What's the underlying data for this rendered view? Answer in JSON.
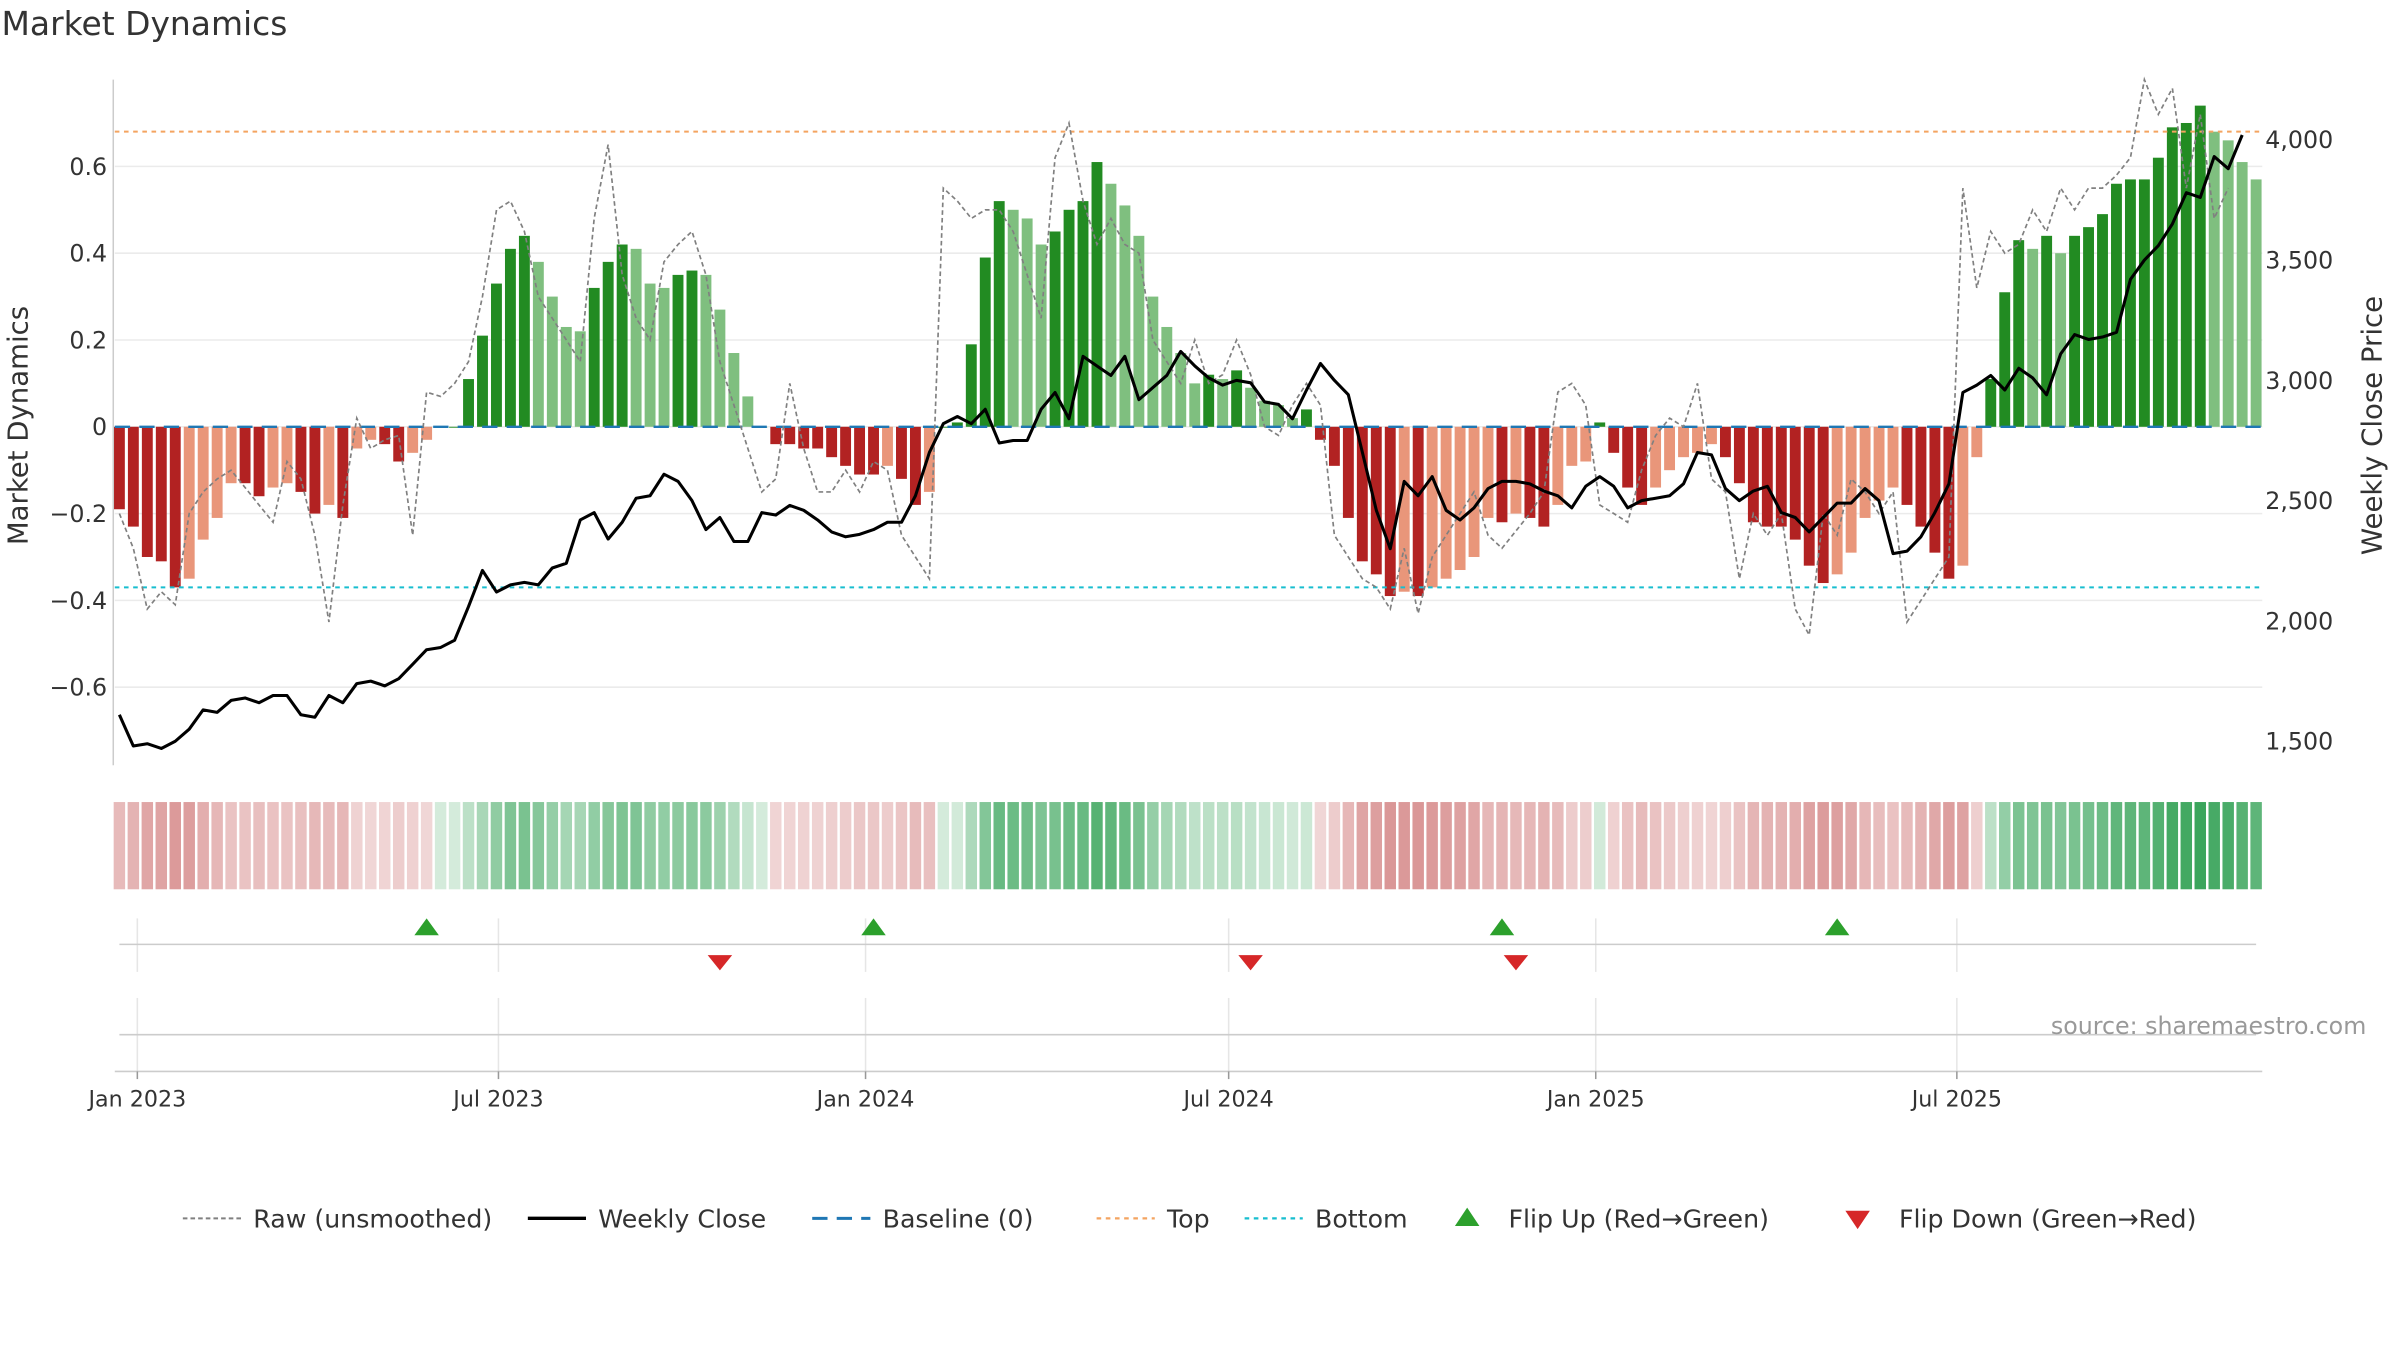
{
  "page": {
    "title": "Market Dynamics",
    "source": "source: sharemaestro.com"
  },
  "colors": {
    "strong_green": "#228B22",
    "light_green": "#7FBF7F",
    "strong_red": "#B22222",
    "light_red": "#E9967A",
    "raw_line": "#808080",
    "close_line": "#000000",
    "baseline": "#1F77B4",
    "top_line": "#F4A460",
    "bottom_line": "#17BECF",
    "flip_up": "#2CA02C",
    "flip_down": "#D62728",
    "source_text": "#999999"
  },
  "chart_data": {
    "type": "bar",
    "title": "Market Dynamics",
    "x_start_date": "2022-12-23",
    "ylabel_left": "Market Dynamics",
    "ylabel_right": "Weekly Close Price",
    "ylim_left": [
      -0.78,
      0.8
    ],
    "ylim_right": [
      1400,
      4250
    ],
    "yticks_left": [
      {
        "value": -0.6,
        "label": "−0.6"
      },
      {
        "value": -0.4,
        "label": "−0.4"
      },
      {
        "value": -0.2,
        "label": "−0.2"
      },
      {
        "value": 0,
        "label": "0"
      },
      {
        "value": 0.2,
        "label": "0.2"
      },
      {
        "value": 0.4,
        "label": "0.4"
      },
      {
        "value": 0.6,
        "label": "0.6"
      }
    ],
    "yticks_right": [
      {
        "value": 1500,
        "label": "1,500"
      },
      {
        "value": 2000,
        "label": "2,000"
      },
      {
        "value": 2500,
        "label": "2,500"
      },
      {
        "value": 3000,
        "label": "3,000"
      },
      {
        "value": 3500,
        "label": "3,500"
      },
      {
        "value": 4000,
        "label": "4,000"
      }
    ],
    "xticks": [
      {
        "date": "2023-01-01",
        "label": "Jan 2023"
      },
      {
        "date": "2023-07-01",
        "label": "Jul 2023"
      },
      {
        "date": "2024-01-01",
        "label": "Jan 2024"
      },
      {
        "date": "2024-07-01",
        "label": "Jul 2024"
      },
      {
        "date": "2025-01-01",
        "label": "Jan 2025"
      },
      {
        "date": "2025-07-01",
        "label": "Jul 2025"
      }
    ],
    "top_level": 0.68,
    "bottom_level": -0.37,
    "grid": true,
    "legend_position": "bottom",
    "bars": [
      -0.19,
      -0.23,
      -0.3,
      -0.31,
      -0.37,
      -0.35,
      -0.26,
      -0.21,
      -0.13,
      -0.13,
      -0.16,
      -0.14,
      -0.13,
      -0.15,
      -0.2,
      -0.18,
      -0.21,
      -0.05,
      -0.03,
      -0.04,
      -0.08,
      -0.06,
      -0.03,
      0,
      0,
      0.11,
      0.21,
      0.33,
      0.41,
      0.44,
      0.38,
      0.3,
      0.23,
      0.22,
      0.32,
      0.38,
      0.42,
      0.41,
      0.33,
      0.32,
      0.35,
      0.36,
      0.35,
      0.27,
      0.17,
      0.07,
      0,
      -0.04,
      -0.04,
      -0.05,
      -0.05,
      -0.07,
      -0.09,
      -0.11,
      -0.11,
      -0.09,
      -0.12,
      -0.18,
      -0.15,
      0,
      0.01,
      0.19,
      0.39,
      0.52,
      0.5,
      0.48,
      0.42,
      0.45,
      0.5,
      0.52,
      0.61,
      0.56,
      0.51,
      0.44,
      0.3,
      0.23,
      0.17,
      0.1,
      0.12,
      0.11,
      0.13,
      0.09,
      0.06,
      0.05,
      0.02,
      0.04,
      -0.03,
      -0.09,
      -0.21,
      -0.31,
      -0.34,
      -0.39,
      -0.38,
      -0.39,
      -0.37,
      -0.35,
      -0.33,
      -0.3,
      -0.21,
      -0.22,
      -0.2,
      -0.21,
      -0.23,
      -0.18,
      -0.09,
      -0.08,
      0.01,
      -0.06,
      -0.14,
      -0.18,
      -0.14,
      -0.1,
      -0.07,
      -0.06,
      -0.04,
      -0.07,
      -0.13,
      -0.22,
      -0.23,
      -0.23,
      -0.26,
      -0.32,
      -0.36,
      -0.34,
      -0.29,
      -0.21,
      -0.17,
      -0.14,
      -0.18,
      -0.23,
      -0.29,
      -0.35,
      -0.32,
      -0.07,
      0.11,
      0.31,
      0.43,
      0.41,
      0.44,
      0.4,
      0.44,
      0.46,
      0.49,
      0.56,
      0.57,
      0.57,
      0.62,
      0.69,
      0.7,
      0.74,
      0.68,
      0.66,
      0.61,
      0.57
    ],
    "series": [
      {
        "name": "Raw (unsmoothed)",
        "values": [
          -0.2,
          -0.28,
          -0.42,
          -0.38,
          -0.41,
          -0.2,
          -0.15,
          -0.12,
          -0.1,
          -0.14,
          -0.18,
          -0.22,
          -0.08,
          -0.12,
          -0.25,
          -0.45,
          -0.18,
          0.02,
          -0.05,
          -0.03,
          -0.02,
          -0.25,
          0.08,
          0.07,
          0.1,
          0.15,
          0.3,
          0.5,
          0.52,
          0.45,
          0.3,
          0.25,
          0.2,
          0.15,
          0.48,
          0.65,
          0.35,
          0.25,
          0.2,
          0.38,
          0.42,
          0.45,
          0.35,
          0.15,
          0.05,
          -0.05,
          -0.15,
          -0.12,
          0.1,
          -0.05,
          -0.15,
          -0.15,
          -0.1,
          -0.15,
          -0.08,
          -0.1,
          -0.25,
          -0.3,
          -0.35,
          0.55,
          0.52,
          0.48,
          0.5,
          0.5,
          0.45,
          0.35,
          0.25,
          0.62,
          0.7,
          0.52,
          0.42,
          0.48,
          0.42,
          0.4,
          0.2,
          0.15,
          0.1,
          0.2,
          0.1,
          0.12,
          0.2,
          0.12,
          0.0,
          -0.02,
          0.05,
          0.1,
          0.05,
          -0.25,
          -0.3,
          -0.35,
          -0.37,
          -0.42,
          -0.28,
          -0.43,
          -0.3,
          -0.25,
          -0.2,
          -0.15,
          -0.25,
          -0.28,
          -0.24,
          -0.2,
          -0.15,
          0.08,
          0.1,
          0.05,
          -0.18,
          -0.2,
          -0.22,
          -0.1,
          -0.02,
          0.02,
          0.0,
          0.1,
          -0.12,
          -0.15,
          -0.35,
          -0.2,
          -0.25,
          -0.2,
          -0.42,
          -0.48,
          -0.2,
          -0.25,
          -0.12,
          -0.15,
          -0.2,
          -0.15,
          -0.45,
          -0.4,
          -0.35,
          -0.3,
          0.55,
          0.32,
          0.45,
          0.4,
          0.42,
          0.5,
          0.45,
          0.55,
          0.5,
          0.55,
          0.55,
          0.58,
          0.62,
          0.8,
          0.72,
          0.78,
          0.55,
          0.72,
          0.48,
          0.55
        ]
      },
      {
        "name": "Weekly Close",
        "values": [
          1610,
          1480,
          1490,
          1470,
          1500,
          1550,
          1630,
          1620,
          1670,
          1680,
          1660,
          1690,
          1690,
          1610,
          1600,
          1690,
          1660,
          1740,
          1750,
          1730,
          1760,
          1820,
          1880,
          1890,
          1920,
          2060,
          2210,
          2120,
          2150,
          2160,
          2150,
          2220,
          2240,
          2420,
          2450,
          2340,
          2410,
          2510,
          2520,
          2610,
          2580,
          2500,
          2380,
          2430,
          2330,
          2330,
          2450,
          2440,
          2480,
          2460,
          2420,
          2370,
          2350,
          2360,
          2380,
          2410,
          2410,
          2520,
          2700,
          2820,
          2850,
          2820,
          2880,
          2740,
          2750,
          2750,
          2880,
          2950,
          2840,
          3100,
          3060,
          3020,
          3100,
          2920,
          2970,
          3020,
          3120,
          3060,
          3010,
          2980,
          3000,
          2990,
          2910,
          2900,
          2840,
          2960,
          3070,
          3000,
          2940,
          2700,
          2460,
          2300,
          2580,
          2520,
          2600,
          2460,
          2420,
          2470,
          2550,
          2580,
          2580,
          2570,
          2540,
          2520,
          2470,
          2560,
          2600,
          2560,
          2470,
          2500,
          2510,
          2520,
          2570,
          2700,
          2690,
          2550,
          2500,
          2540,
          2560,
          2450,
          2430,
          2370,
          2430,
          2490,
          2490,
          2550,
          2500,
          2280,
          2290,
          2350,
          2450,
          2570,
          2950,
          2980,
          3020,
          2960,
          3050,
          3010,
          2940,
          3110,
          3190,
          3170,
          3180,
          3200,
          3420,
          3500,
          3560,
          3650,
          3780,
          3760,
          3930,
          3880,
          4020
        ]
      },
      {
        "name": "Baseline (0)",
        "values": [
          0,
          0
        ]
      },
      {
        "name": "Top",
        "values": [
          0.68,
          0.68
        ]
      },
      {
        "name": "Bottom",
        "values": [
          -0.37,
          -0.37
        ]
      }
    ],
    "flips": [
      {
        "type": "up",
        "date": "2023-05-26"
      },
      {
        "type": "down",
        "date": "2023-10-20"
      },
      {
        "type": "up",
        "date": "2024-01-05"
      },
      {
        "type": "down",
        "date": "2024-07-12"
      },
      {
        "type": "up",
        "date": "2024-11-15"
      },
      {
        "type": "down",
        "date": "2024-11-22"
      },
      {
        "type": "up",
        "date": "2025-05-02"
      }
    ],
    "legend": [
      {
        "label": "Raw (unsmoothed)",
        "kind": "dashed",
        "color": "#808080"
      },
      {
        "label": "Weekly Close",
        "kind": "solid",
        "color": "#000000"
      },
      {
        "label": "Baseline (0)",
        "kind": "dash",
        "color": "#1F77B4"
      },
      {
        "label": "Top",
        "kind": "dotted",
        "color": "#F4A460"
      },
      {
        "label": "Bottom",
        "kind": "dotted",
        "color": "#17BECF"
      },
      {
        "label": "Flip Up (Red→Green)",
        "kind": "tri-up",
        "color": "#2CA02C"
      },
      {
        "label": "Flip Down (Green→Red)",
        "kind": "tri-down",
        "color": "#D62728"
      }
    ]
  }
}
